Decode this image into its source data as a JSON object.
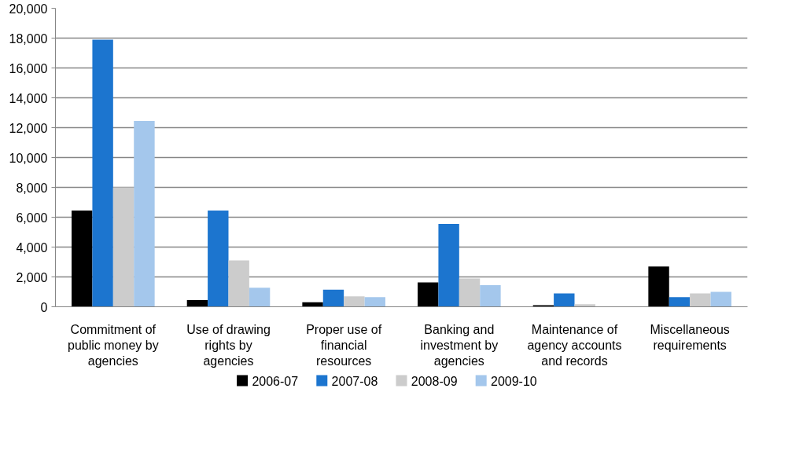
{
  "chart_data": {
    "type": "bar",
    "categories": [
      "Commitment of public money by agencies",
      "Use of drawing rights by agencies",
      "Proper use of financial resources",
      "Banking and investment by agencies",
      "Maintenance of agency accounts and records",
      "Miscellaneous requirements"
    ],
    "series": [
      {
        "name": "2006-07",
        "color": "#000000",
        "values": [
          6450,
          450,
          300,
          1630,
          100,
          2700
        ]
      },
      {
        "name": "2007-08",
        "color": "#1c75cf",
        "values": [
          17900,
          6450,
          1150,
          5550,
          900,
          650
        ]
      },
      {
        "name": "2008-09",
        "color": "#cccccc",
        "values": [
          8000,
          3100,
          700,
          1900,
          170,
          900
        ]
      },
      {
        "name": "2009-10",
        "color": "#a4c7ec",
        "values": [
          12450,
          1280,
          650,
          1450,
          null,
          1000
        ]
      }
    ],
    "ylim": [
      0,
      20000
    ],
    "yticks": [
      {
        "value": 0,
        "label": "0"
      },
      {
        "value": 2000,
        "label": "2,000"
      },
      {
        "value": 4000,
        "label": "4,000"
      },
      {
        "value": 6000,
        "label": "6,000"
      },
      {
        "value": 8000,
        "label": "8,000"
      },
      {
        "value": 10000,
        "label": "10,000"
      },
      {
        "value": 12000,
        "label": "12,000"
      },
      {
        "value": 14000,
        "label": "14,000"
      },
      {
        "value": 16000,
        "label": "16,000"
      },
      {
        "value": 18000,
        "label": "18,000"
      },
      {
        "value": 20000,
        "label": "20,000"
      }
    ],
    "grid": "y",
    "legend": "bottom"
  }
}
